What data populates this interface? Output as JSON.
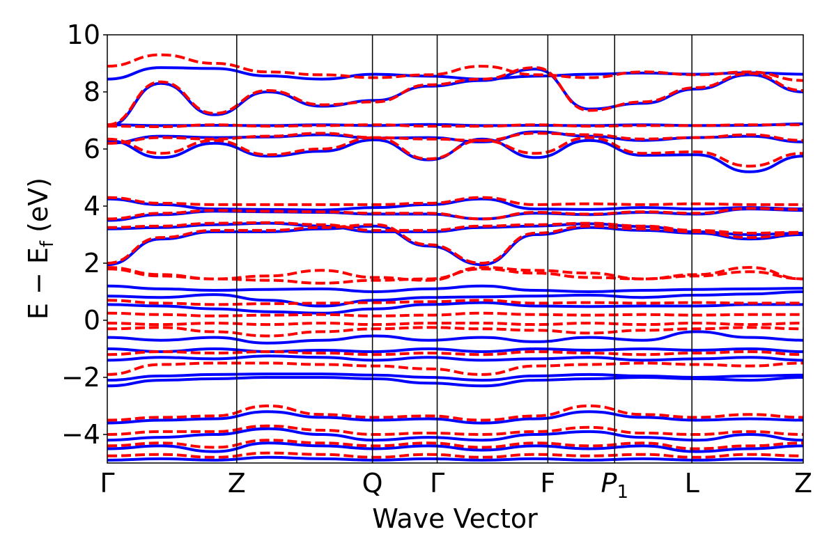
{
  "chart_data": {
    "type": "line",
    "xlabel": "Wave Vector",
    "ylabel": "E − E",
    "ylabel_subscript": "f",
    "ylabel_unit": "(eV)",
    "ylim": [
      -5,
      10
    ],
    "yticks": [
      -4,
      -2,
      0,
      2,
      4,
      6,
      8,
      10
    ],
    "ytick_labels": [
      "−4",
      "−2",
      "0",
      "2",
      "4",
      "6",
      "8",
      "10"
    ],
    "grid": false,
    "legend": "none",
    "x_range": [
      0,
      10
    ],
    "kpoints": [
      {
        "x": 0.0,
        "label": "Γ",
        "sub": ""
      },
      {
        "x": 1.86,
        "label": "Z",
        "sub": ""
      },
      {
        "x": 3.81,
        "label": "Q",
        "sub": ""
      },
      {
        "x": 4.74,
        "label": "Γ",
        "sub": ""
      },
      {
        "x": 6.33,
        "label": "F",
        "sub": ""
      },
      {
        "x": 7.29,
        "label": "P",
        "sub": "1"
      },
      {
        "x": 8.4,
        "label": "L",
        "sub": ""
      },
      {
        "x": 10.0,
        "label": "Z",
        "sub": ""
      }
    ],
    "series": [
      {
        "color": "#0000ff",
        "style": "solid",
        "bands": [
          [
            8.45,
            8.85,
            8.82,
            8.56,
            8.45,
            8.62,
            8.55,
            8.45,
            8.55,
            8.62,
            8.66,
            8.62,
            8.67,
            8.62
          ],
          [
            6.3,
            5.7,
            6.2,
            5.75,
            5.92,
            6.32,
            5.62,
            6.35,
            5.7,
            6.3,
            5.78,
            5.8,
            5.2,
            5.75
          ],
          [
            6.2,
            6.45,
            6.4,
            6.42,
            6.5,
            6.38,
            6.4,
            6.25,
            6.6,
            6.45,
            6.3,
            6.4,
            6.45,
            6.25
          ],
          [
            6.85,
            6.82,
            6.83,
            6.82,
            6.85,
            6.82,
            6.86,
            6.82,
            6.83,
            6.82,
            6.85,
            6.82,
            6.83,
            6.88
          ],
          [
            6.8,
            8.3,
            7.2,
            8.0,
            7.5,
            7.7,
            8.2,
            8.4,
            8.8,
            7.4,
            7.6,
            8.1,
            8.6,
            8.0
          ],
          [
            4.25,
            4.05,
            3.9,
            3.88,
            3.86,
            3.95,
            4.05,
            4.25,
            3.9,
            3.88,
            3.95,
            3.9,
            3.95,
            3.9
          ],
          [
            3.5,
            3.7,
            3.82,
            3.8,
            3.78,
            3.72,
            3.72,
            3.55,
            3.75,
            3.7,
            3.78,
            3.72,
            3.9,
            3.85
          ],
          [
            3.2,
            3.25,
            3.35,
            3.4,
            3.3,
            3.1,
            3.1,
            3.25,
            3.3,
            3.38,
            3.28,
            3.1,
            3.0,
            3.05
          ],
          [
            1.95,
            2.85,
            3.1,
            3.1,
            3.2,
            3.3,
            2.6,
            1.95,
            3.0,
            3.25,
            3.15,
            3.05,
            2.85,
            3.0
          ],
          [
            1.2,
            1.1,
            1.05,
            1.08,
            1.1,
            1.0,
            1.1,
            1.2,
            1.05,
            1.0,
            1.05,
            1.08,
            1.1,
            1.12
          ],
          [
            0.85,
            0.8,
            0.9,
            0.7,
            0.5,
            0.7,
            0.8,
            0.82,
            0.85,
            0.88,
            0.8,
            0.88,
            0.92,
            1.0
          ],
          [
            0.55,
            0.5,
            0.4,
            0.3,
            0.25,
            0.4,
            0.55,
            0.62,
            0.5,
            0.48,
            0.5,
            0.5,
            0.55,
            0.55
          ],
          [
            -0.6,
            -0.7,
            -0.6,
            -0.8,
            -0.7,
            -0.55,
            -0.7,
            -0.6,
            -0.75,
            -0.6,
            -0.7,
            -0.4,
            -0.6,
            -0.7
          ],
          [
            -1.0,
            -1.1,
            -1.0,
            -1.1,
            -1.05,
            -1.1,
            -1.0,
            -1.1,
            -1.0,
            -1.05,
            -1.0,
            -1.05,
            -1.0,
            -1.1
          ],
          [
            -1.4,
            -1.3,
            -1.35,
            -1.25,
            -1.3,
            -1.4,
            -1.3,
            -1.4,
            -1.35,
            -1.3,
            -1.4,
            -1.35,
            -1.3,
            -1.4
          ],
          [
            -2.1,
            -1.95,
            -1.9,
            -1.88,
            -1.88,
            -1.92,
            -2.0,
            -2.1,
            -1.95,
            -1.9,
            -1.95,
            -2.0,
            -1.95,
            -1.92
          ],
          [
            -2.3,
            -2.1,
            -2.05,
            -2.0,
            -2.0,
            -2.05,
            -2.2,
            -2.3,
            -2.1,
            -2.05,
            -2.0,
            -2.05,
            -2.1,
            -2.0
          ],
          [
            -3.6,
            -3.5,
            -3.45,
            -3.2,
            -3.4,
            -3.5,
            -3.45,
            -3.6,
            -3.45,
            -3.2,
            -3.4,
            -3.5,
            -3.45,
            -3.5
          ],
          [
            -4.2,
            -4.1,
            -4.0,
            -3.8,
            -4.0,
            -4.2,
            -4.1,
            -4.2,
            -4.0,
            -3.9,
            -4.1,
            -4.2,
            -4.0,
            -4.2
          ],
          [
            -4.5,
            -4.4,
            -4.6,
            -4.3,
            -4.4,
            -4.5,
            -4.4,
            -4.55,
            -4.4,
            -4.5,
            -4.4,
            -4.6,
            -4.5,
            -4.4
          ],
          [
            -4.9,
            -4.85,
            -4.9,
            -4.8,
            -4.85,
            -4.9,
            -4.85,
            -4.9,
            -4.85,
            -4.9,
            -4.85,
            -4.9,
            -4.85,
            -4.9
          ]
        ]
      },
      {
        "color": "#ff0000",
        "style": "dashed",
        "bands": [
          [
            8.9,
            9.3,
            9.0,
            8.7,
            8.6,
            8.5,
            8.6,
            8.9,
            8.6,
            8.5,
            8.7,
            8.6,
            8.7,
            8.4
          ],
          [
            6.35,
            5.85,
            6.3,
            5.8,
            6.0,
            6.4,
            5.65,
            6.3,
            5.85,
            6.4,
            5.85,
            5.9,
            5.4,
            5.85
          ],
          [
            6.8,
            6.78,
            6.85,
            6.8,
            6.82,
            6.85,
            6.8,
            6.8,
            6.85,
            6.8,
            6.82,
            6.82,
            6.85,
            6.85
          ],
          [
            6.2,
            6.4,
            6.35,
            6.45,
            6.55,
            6.4,
            6.35,
            6.3,
            6.55,
            6.5,
            6.35,
            6.4,
            6.5,
            6.3
          ],
          [
            6.85,
            8.35,
            7.25,
            8.05,
            7.55,
            7.65,
            8.25,
            8.45,
            8.85,
            7.35,
            7.65,
            8.15,
            8.65,
            8.05
          ],
          [
            4.3,
            4.1,
            4.05,
            4.05,
            4.05,
            4.05,
            4.1,
            4.3,
            4.05,
            4.08,
            4.05,
            4.08,
            4.05,
            4.05
          ],
          [
            3.55,
            3.75,
            3.85,
            3.82,
            3.8,
            3.75,
            3.75,
            3.55,
            3.78,
            3.72,
            3.8,
            3.75,
            3.92,
            3.88
          ],
          [
            3.25,
            3.3,
            3.4,
            3.42,
            3.35,
            3.15,
            3.15,
            3.3,
            3.35,
            3.4,
            3.3,
            3.15,
            3.05,
            3.08
          ],
          [
            2.0,
            2.9,
            3.15,
            3.15,
            3.25,
            3.35,
            2.65,
            2.0,
            3.05,
            3.3,
            3.2,
            3.1,
            2.9,
            3.05
          ],
          [
            1.85,
            1.6,
            1.45,
            1.55,
            1.75,
            1.5,
            1.4,
            1.85,
            1.75,
            1.65,
            1.45,
            1.6,
            1.85,
            1.45
          ],
          [
            1.8,
            1.55,
            1.45,
            1.4,
            1.3,
            1.4,
            1.45,
            1.8,
            1.65,
            1.5,
            1.45,
            1.55,
            1.7,
            1.45
          ],
          [
            0.7,
            0.6,
            0.55,
            0.58,
            0.6,
            0.62,
            0.65,
            0.7,
            0.6,
            0.62,
            0.6,
            0.62,
            0.6,
            0.6
          ],
          [
            0.25,
            0.2,
            0.15,
            0.18,
            0.2,
            0.15,
            0.18,
            0.25,
            0.2,
            0.18,
            0.2,
            0.18,
            0.2,
            0.2
          ],
          [
            -0.1,
            -0.15,
            -0.1,
            -0.15,
            -0.1,
            -0.15,
            -0.1,
            -0.1,
            -0.15,
            -0.1,
            -0.15,
            -0.1,
            -0.15,
            -0.1
          ],
          [
            -0.3,
            -0.25,
            -0.4,
            -0.55,
            -0.4,
            -0.3,
            -0.25,
            -0.3,
            -0.35,
            -0.45,
            -0.35,
            -0.3,
            -0.25,
            -0.3
          ],
          [
            -1.2,
            -1.1,
            -1.15,
            -1.1,
            -1.15,
            -1.2,
            -1.15,
            -1.2,
            -1.1,
            -1.15,
            -1.2,
            -1.15,
            -1.1,
            -1.2
          ],
          [
            -1.9,
            -1.55,
            -1.5,
            -1.5,
            -1.55,
            -1.6,
            -1.7,
            -1.9,
            -1.6,
            -1.55,
            -1.5,
            -1.55,
            -1.6,
            -1.5
          ],
          [
            -3.5,
            -3.4,
            -3.35,
            -3.0,
            -3.3,
            -3.4,
            -3.35,
            -3.5,
            -3.35,
            -3.0,
            -3.3,
            -3.4,
            -3.3,
            -3.4
          ],
          [
            -4.0,
            -3.9,
            -3.9,
            -3.7,
            -3.85,
            -4.0,
            -3.95,
            -4.0,
            -3.9,
            -3.75,
            -3.95,
            -4.0,
            -3.9,
            -4.0
          ],
          [
            -4.4,
            -4.3,
            -4.45,
            -4.2,
            -4.3,
            -4.4,
            -4.3,
            -4.45,
            -4.3,
            -4.4,
            -4.3,
            -4.5,
            -4.4,
            -4.3
          ],
          [
            -4.75,
            -4.7,
            -4.8,
            -4.65,
            -4.7,
            -4.8,
            -4.7,
            -4.8,
            -4.7,
            -4.75,
            -4.7,
            -4.8,
            -4.7,
            -4.75
          ]
        ]
      }
    ]
  }
}
